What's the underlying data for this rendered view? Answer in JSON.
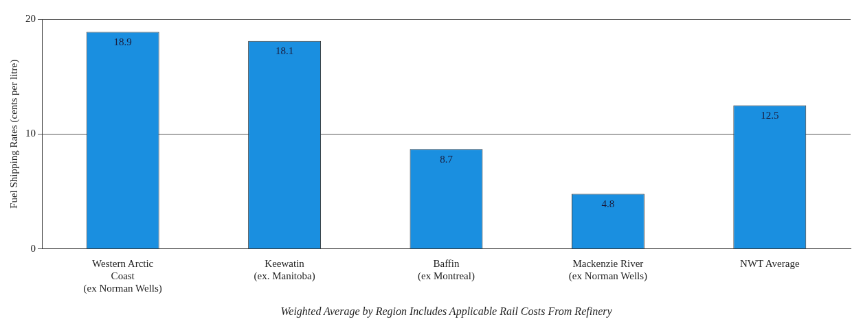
{
  "chart_data": {
    "type": "bar",
    "xlabel": "Weighted Average by Region Includes Applicable Rail Costs From Refinery",
    "ylabel": "Fuel Shipping Rates (cents per litre)",
    "categories": [
      "Western Arctic\nCoast\n(ex Norman Wells)",
      "Keewatin\n(ex. Manitoba)",
      "Baffin\n(ex Montreal)",
      "Mackenzie River\n(ex Norman Wells)",
      "NWT Average"
    ],
    "values": [
      18.9,
      18.1,
      8.7,
      4.8,
      12.5
    ],
    "color": "#1a8fe0",
    "ylim": [
      0,
      20
    ],
    "yticks": [
      0,
      10,
      20
    ],
    "grid": "y",
    "data_labels": true
  }
}
